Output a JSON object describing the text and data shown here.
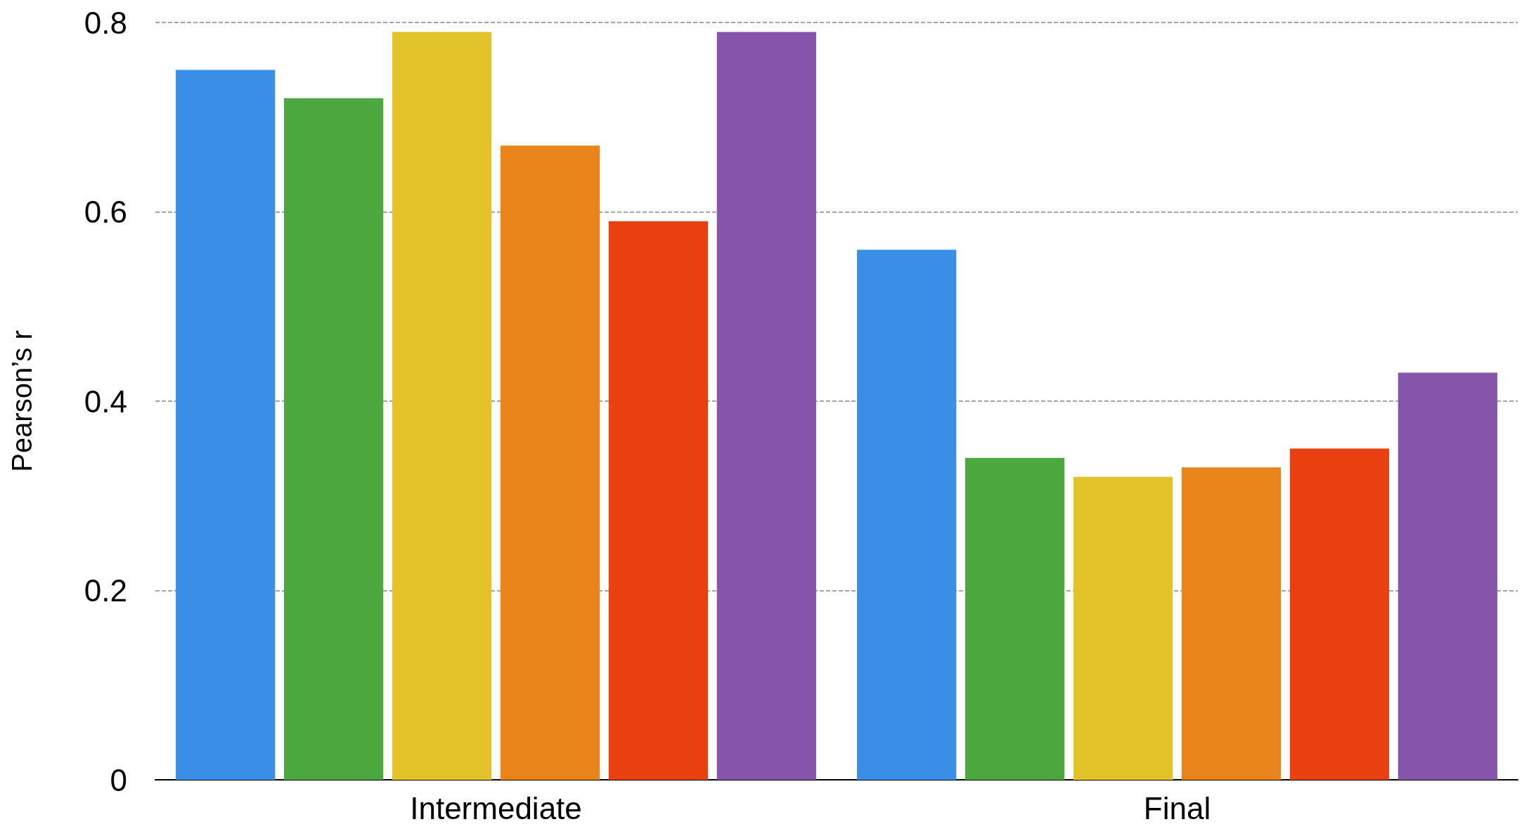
{
  "chart_data": {
    "type": "bar",
    "ylabel": "Pearson’s r",
    "categories": [
      "Intermediate",
      "Final"
    ],
    "series": [
      {
        "color": "#3a8ee6",
        "values": [
          0.75,
          0.56
        ]
      },
      {
        "color": "#4aa83e",
        "values": [
          0.72,
          0.34
        ]
      },
      {
        "color": "#e2c42a",
        "values": [
          0.79,
          0.32
        ]
      },
      {
        "color": "#e8841a",
        "values": [
          0.67,
          0.33
        ]
      },
      {
        "color": "#e8400f",
        "values": [
          0.59,
          0.35
        ]
      },
      {
        "color": "#8455aa",
        "values": [
          0.79,
          0.43
        ]
      }
    ],
    "ylim": [
      0,
      0.8
    ],
    "yticks": [
      0,
      0.2,
      0.4,
      0.6,
      0.8
    ],
    "grid": "y"
  }
}
